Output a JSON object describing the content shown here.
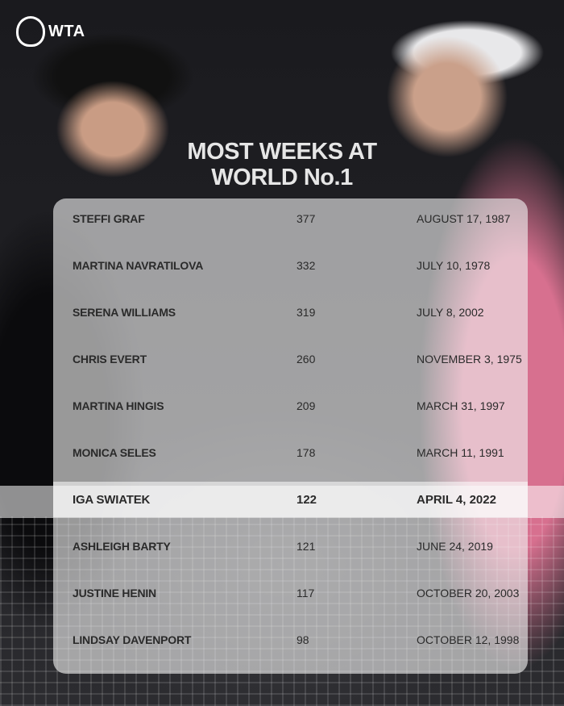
{
  "brand": {
    "logo_text": "WTA"
  },
  "title": {
    "line1": "MOST WEEKS AT",
    "line2": "WORLD No.1"
  },
  "rows": [
    {
      "name": "STEFFI GRAF",
      "weeks": "377",
      "date": "AUGUST 17, 1987"
    },
    {
      "name": "MARTINA NAVRATILOVA",
      "weeks": "332",
      "date": "JULY 10, 1978"
    },
    {
      "name": "SERENA WILLIAMS",
      "weeks": "319",
      "date": "JULY 8, 2002"
    },
    {
      "name": "CHRIS EVERT",
      "weeks": "260",
      "date": "NOVEMBER 3, 1975"
    },
    {
      "name": "MARTINA HINGIS",
      "weeks": "209",
      "date": "MARCH 31, 1997"
    },
    {
      "name": "MONICA SELES",
      "weeks": "178",
      "date": "MARCH 11, 1991"
    },
    {
      "name": "IGA SWIATEK",
      "weeks": "122",
      "date": "APRIL 4, 2022",
      "highlighted": true
    },
    {
      "name": "ASHLEIGH BARTY",
      "weeks": "121",
      "date": "JUNE 24, 2019"
    },
    {
      "name": "JUSTINE HENIN",
      "weeks": "117",
      "date": "OCTOBER 20, 2003"
    },
    {
      "name": "LINDSAY DAVENPORT",
      "weeks": "98",
      "date": "OCTOBER 12, 1998"
    }
  ]
}
